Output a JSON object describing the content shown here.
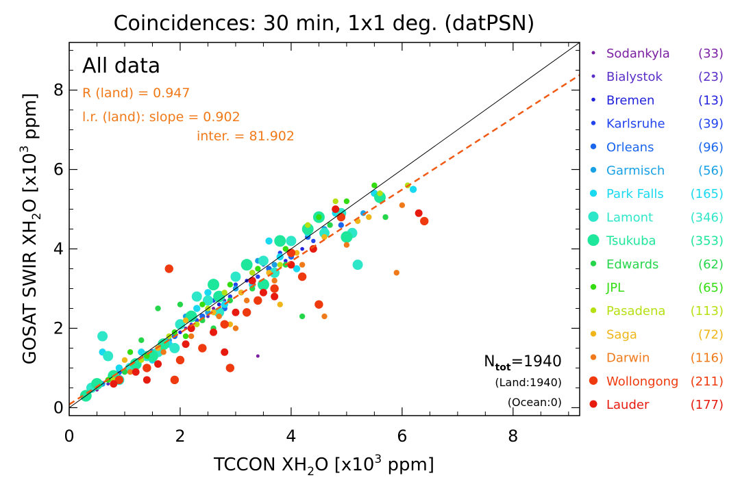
{
  "chart_data": {
    "type": "scatter",
    "title": "Coincidences: 30 min, 1x1 deg. (datPSN)",
    "xlabel": "TCCON XH2O [x10^3 ppm]",
    "ylabel": "GOSAT SWIR XH2O [x10^3 ppm]",
    "xlim": [
      0,
      9.2
    ],
    "ylim": [
      -0.2,
      9.2
    ],
    "x_ticks": [
      0,
      2,
      4,
      6,
      8
    ],
    "y_ticks": [
      0,
      2,
      4,
      6,
      8
    ],
    "x_tick_labels": [
      "0",
      "2",
      "4",
      "6",
      "8"
    ],
    "y_tick_labels": [
      "0",
      "2",
      "4",
      "6",
      "8"
    ],
    "grid": false,
    "legend_position": "right-outside",
    "panel_label": "All data",
    "stats": {
      "r_label": "R (land) = 0.947",
      "slope_label": "l.r. (land): slope = 0.902",
      "inter_label": "inter. = 81.902",
      "r": 0.947,
      "slope": 0.902,
      "intercept_ppm": 81.902
    },
    "counts": {
      "ntot_base": "N",
      "ntot_sub": "tot",
      "ntot_value": "=1940",
      "land": "(Land:1940)",
      "ocean": "(Ocean:0)"
    },
    "one_to_one_line": {
      "x": [
        0,
        9.2
      ],
      "y": [
        0,
        9.2
      ]
    },
    "regression_line": {
      "x": [
        0,
        9.2
      ],
      "y": [
        0.082,
        8.38
      ]
    },
    "series": [
      {
        "name": "Sodankyla",
        "count": "(33)",
        "color": "#7a1fa2",
        "size": 2.5,
        "points": [
          [
            0.5,
            0.45
          ],
          [
            0.9,
            0.85
          ],
          [
            1.3,
            1.2
          ],
          [
            1.6,
            1.5
          ],
          [
            2.1,
            2.0
          ],
          [
            3.4,
            1.3
          ],
          [
            0.3,
            0.25
          ],
          [
            2.6,
            2.5
          ],
          [
            1.2,
            1.15
          ],
          [
            1.8,
            1.7
          ]
        ]
      },
      {
        "name": "Bialystok",
        "count": "(23)",
        "color": "#5a2ec8",
        "size": 2.5,
        "points": [
          [
            1.5,
            1.4
          ],
          [
            2.2,
            2.1
          ],
          [
            2.8,
            2.7
          ],
          [
            3.3,
            3.0
          ],
          [
            1.0,
            0.95
          ],
          [
            2.5,
            2.3
          ],
          [
            3.6,
            3.4
          ],
          [
            0.7,
            0.6
          ]
        ]
      },
      {
        "name": "Bremen",
        "count": "(13)",
        "color": "#2222dd",
        "size": 2.8,
        "points": [
          [
            0.8,
            0.8
          ],
          [
            1.4,
            1.35
          ],
          [
            2.0,
            1.9
          ],
          [
            2.7,
            2.6
          ],
          [
            3.2,
            3.2
          ],
          [
            3.9,
            3.7
          ],
          [
            4.2,
            4.0
          ],
          [
            3.5,
            3.6
          ]
        ]
      },
      {
        "name": "Karlsruhe",
        "count": "(39)",
        "color": "#2244ee",
        "size": 3.2,
        "points": [
          [
            1.1,
            1.0
          ],
          [
            1.7,
            1.6
          ],
          [
            2.3,
            2.2
          ],
          [
            2.9,
            2.8
          ],
          [
            3.4,
            3.3
          ],
          [
            3.8,
            3.9
          ],
          [
            4.4,
            4.2
          ],
          [
            2.0,
            2.1
          ],
          [
            2.6,
            2.7
          ],
          [
            3.0,
            3.1
          ]
        ]
      },
      {
        "name": "Orleans",
        "count": "(96)",
        "color": "#1a66ee",
        "size": 4.2,
        "points": [
          [
            0.9,
            0.9
          ],
          [
            1.5,
            1.4
          ],
          [
            2.4,
            2.3
          ],
          [
            3.1,
            2.9
          ],
          [
            3.6,
            3.5
          ],
          [
            4.3,
            4.3
          ],
          [
            4.9,
            4.6
          ],
          [
            2.8,
            2.5
          ],
          [
            3.3,
            3.4
          ],
          [
            1.9,
            1.8
          ],
          [
            4.0,
            3.8
          ],
          [
            2.2,
            2.0
          ]
        ]
      },
      {
        "name": "Garmisch",
        "count": "(56)",
        "color": "#19a1e6",
        "size": 4.2,
        "points": [
          [
            0.6,
            0.6
          ],
          [
            1.2,
            1.1
          ],
          [
            1.8,
            1.7
          ],
          [
            2.5,
            2.4
          ],
          [
            3.0,
            3.0
          ],
          [
            3.7,
            3.6
          ],
          [
            4.6,
            4.5
          ],
          [
            5.3,
            4.9
          ],
          [
            2.1,
            2.3
          ],
          [
            3.4,
            3.7
          ]
        ]
      },
      {
        "name": "Park Falls",
        "count": "(165)",
        "color": "#19d9f0",
        "size": 5.2,
        "points": [
          [
            0.6,
            1.4
          ],
          [
            0.9,
            1.0
          ],
          [
            1.3,
            1.4
          ],
          [
            1.8,
            1.6
          ],
          [
            2.3,
            2.5
          ],
          [
            2.8,
            2.6
          ],
          [
            3.3,
            3.1
          ],
          [
            3.8,
            3.8
          ],
          [
            4.3,
            4.4
          ],
          [
            4.8,
            4.9
          ],
          [
            5.5,
            5.4
          ],
          [
            6.2,
            5.5
          ],
          [
            3.6,
            4.2
          ],
          [
            4.1,
            3.5
          ],
          [
            2.5,
            2.9
          ],
          [
            1.5,
            1.2
          ]
        ]
      },
      {
        "name": "Lamont",
        "count": "(346)",
        "color": "#2ee6c8",
        "size": 7.5,
        "points": [
          [
            0.6,
            1.8
          ],
          [
            0.7,
            1.3
          ],
          [
            1.1,
            1.0
          ],
          [
            1.6,
            1.4
          ],
          [
            2.0,
            2.1
          ],
          [
            2.5,
            2.7
          ],
          [
            3.0,
            3.3
          ],
          [
            3.5,
            3.7
          ],
          [
            4.0,
            4.2
          ],
          [
            4.6,
            4.4
          ],
          [
            5.1,
            4.4
          ],
          [
            5.2,
            3.6
          ],
          [
            4.9,
            4.9
          ],
          [
            2.3,
            2.8
          ],
          [
            1.4,
            1.3
          ],
          [
            0.9,
            0.7
          ],
          [
            3.7,
            3.4
          ],
          [
            2.7,
            2.4
          ],
          [
            0.4,
            0.5
          ],
          [
            1.9,
            1.5
          ]
        ]
      },
      {
        "name": "Tsukuba",
        "count": "(353)",
        "color": "#1ee69a",
        "size": 8.5,
        "points": [
          [
            0.5,
            0.6
          ],
          [
            0.8,
            0.8
          ],
          [
            1.2,
            1.1
          ],
          [
            1.7,
            1.6
          ],
          [
            2.2,
            2.3
          ],
          [
            2.7,
            2.8
          ],
          [
            3.2,
            3.6
          ],
          [
            3.8,
            4.2
          ],
          [
            4.3,
            4.5
          ],
          [
            5.0,
            4.3
          ],
          [
            5.6,
            5.3
          ],
          [
            2.6,
            3.1
          ],
          [
            1.5,
            1.3
          ],
          [
            3.5,
            3.1
          ],
          [
            4.5,
            4.8
          ],
          [
            0.3,
            0.3
          ]
        ]
      },
      {
        "name": "Edwards",
        "count": "(62)",
        "color": "#26d64a",
        "size": 4.2,
        "points": [
          [
            1.0,
            0.9
          ],
          [
            1.6,
            2.5
          ],
          [
            2.0,
            2.6
          ],
          [
            2.4,
            2.2
          ],
          [
            2.9,
            2.7
          ],
          [
            3.3,
            3.0
          ],
          [
            3.9,
            3.6
          ],
          [
            4.2,
            2.3
          ],
          [
            4.7,
            4.6
          ],
          [
            5.7,
            4.8
          ],
          [
            1.3,
            1.7
          ],
          [
            2.6,
            2.0
          ]
        ]
      },
      {
        "name": "JPL",
        "count": "(65)",
        "color": "#33dd11",
        "size": 4.2,
        "points": [
          [
            0.7,
            0.7
          ],
          [
            1.4,
            1.3
          ],
          [
            1.9,
            1.9
          ],
          [
            2.4,
            2.6
          ],
          [
            2.9,
            3.1
          ],
          [
            3.4,
            3.5
          ],
          [
            3.9,
            4.0
          ],
          [
            4.5,
            4.8
          ],
          [
            5.0,
            5.2
          ],
          [
            5.5,
            5.6
          ],
          [
            1.1,
            1.4
          ],
          [
            2.1,
            1.8
          ]
        ]
      },
      {
        "name": "Pasadena",
        "count": "(113)",
        "color": "#b5e011",
        "size": 4.2,
        "points": [
          [
            0.8,
            0.7
          ],
          [
            1.3,
            1.2
          ],
          [
            1.8,
            1.8
          ],
          [
            2.3,
            2.1
          ],
          [
            2.8,
            2.9
          ],
          [
            3.3,
            3.4
          ],
          [
            3.8,
            3.6
          ],
          [
            4.3,
            4.6
          ],
          [
            4.8,
            5.2
          ],
          [
            5.6,
            5.4
          ],
          [
            6.1,
            5.6
          ],
          [
            2.5,
            2.5
          ]
        ]
      },
      {
        "name": "Saga",
        "count": "(72)",
        "color": "#f0b619",
        "size": 4.2,
        "points": [
          [
            1.0,
            1.2
          ],
          [
            1.6,
            1.5
          ],
          [
            2.1,
            2.2
          ],
          [
            2.6,
            2.4
          ],
          [
            3.1,
            2.9
          ],
          [
            3.6,
            3.4
          ],
          [
            4.1,
            3.9
          ],
          [
            4.6,
            4.3
          ],
          [
            5.2,
            4.7
          ],
          [
            5.4,
            4.8
          ],
          [
            3.8,
            2.6
          ],
          [
            2.9,
            2.1
          ]
        ]
      },
      {
        "name": "Darwin",
        "count": "(116)",
        "color": "#f07a19",
        "size": 4.2,
        "points": [
          [
            1.1,
            0.9
          ],
          [
            1.7,
            1.4
          ],
          [
            2.2,
            1.8
          ],
          [
            2.7,
            2.3
          ],
          [
            3.2,
            2.7
          ],
          [
            3.7,
            3.2
          ],
          [
            4.2,
            3.6
          ],
          [
            4.6,
            2.3
          ],
          [
            5.0,
            4.1
          ],
          [
            5.9,
            3.4
          ],
          [
            6.0,
            5.1
          ],
          [
            3.0,
            2.0
          ]
        ]
      },
      {
        "name": "Wollongong",
        "count": "(211)",
        "color": "#ee3a0e",
        "size": 6.2,
        "points": [
          [
            0.9,
            0.7
          ],
          [
            1.4,
            1.0
          ],
          [
            1.9,
            0.7
          ],
          [
            2.4,
            1.5
          ],
          [
            2.8,
            2.1
          ],
          [
            3.2,
            2.4
          ],
          [
            3.7,
            3.0
          ],
          [
            4.2,
            3.3
          ],
          [
            4.5,
            2.6
          ],
          [
            4.9,
            4.8
          ],
          [
            6.4,
            4.7
          ],
          [
            1.8,
            3.5
          ],
          [
            2.0,
            1.2
          ],
          [
            2.9,
            1.0
          ],
          [
            3.4,
            2.7
          ],
          [
            4.0,
            3.9
          ]
        ]
      },
      {
        "name": "Lauder",
        "count": "(177)",
        "color": "#e61a0e",
        "size": 5.5,
        "points": [
          [
            0.8,
            0.6
          ],
          [
            1.2,
            0.9
          ],
          [
            1.6,
            1.1
          ],
          [
            2.1,
            1.6
          ],
          [
            2.6,
            1.9
          ],
          [
            3.0,
            2.4
          ],
          [
            3.5,
            2.9
          ],
          [
            3.7,
            2.8
          ],
          [
            4.0,
            3.6
          ],
          [
            4.4,
            4.0
          ],
          [
            4.8,
            5.0
          ],
          [
            6.3,
            4.9
          ],
          [
            2.8,
            1.4
          ],
          [
            2.2,
            2.0
          ],
          [
            3.3,
            3.2
          ],
          [
            1.4,
            0.7
          ]
        ]
      }
    ]
  }
}
